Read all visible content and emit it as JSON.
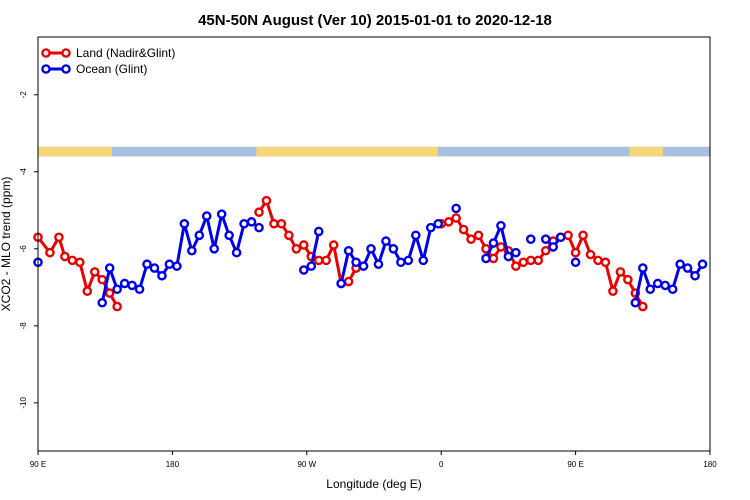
{
  "chart_data": {
    "type": "line",
    "title": "45N-50N August (Ver 10)   2015-01-01 to 2020-12-18",
    "xlabel": "Longitude (deg E)",
    "ylabel": "XCO2 - MLO trend (ppm)",
    "x_tick_labels": [
      "90 E",
      "180",
      "90 W",
      "0",
      "90 E",
      "180"
    ],
    "y_tick_labels": [
      "-2",
      "-4",
      "-6",
      "-8",
      "-10"
    ],
    "y_tick_values": [
      -2,
      -4,
      -6,
      -8,
      -10
    ],
    "xlim": [
      0,
      450
    ],
    "ylim": [
      -11.25,
      -0.5
    ],
    "grid": false,
    "legend_position": "top-left",
    "map_strip": {
      "y_top": -3.35,
      "y_bottom": -3.6,
      "land_color": "#f5d77a",
      "ocean_color": "#a9bfe0"
    },
    "series": [
      {
        "name": "Land (Nadir&Glint)",
        "color": "#e60000",
        "segments": [
          [
            [
              0,
              -5.7
            ],
            [
              8,
              -6.1
            ],
            [
              14,
              -5.7
            ],
            [
              18,
              -6.2
            ],
            [
              23,
              -6.3
            ],
            [
              28,
              -6.35
            ],
            [
              33,
              -7.1
            ],
            [
              38,
              -6.6
            ],
            [
              43,
              -6.8
            ],
            [
              48,
              -7.15
            ],
            [
              53,
              -7.5
            ]
          ],
          [
            [
              148,
              -5.05
            ],
            [
              153,
              -4.75
            ],
            [
              158,
              -5.35
            ],
            [
              163,
              -5.35
            ],
            [
              168,
              -5.65
            ],
            [
              173,
              -6.0
            ],
            [
              178,
              -5.9
            ],
            [
              183,
              -6.2
            ],
            [
              188,
              -6.3
            ],
            [
              193,
              -6.3
            ],
            [
              198,
              -5.9
            ],
            [
              203,
              -6.9
            ],
            [
              208,
              -6.85
            ],
            [
              213,
              -6.5
            ]
          ],
          [
            [
              270,
              -5.35
            ],
            [
              275,
              -5.3
            ],
            [
              280,
              -5.2
            ],
            [
              285,
              -5.5
            ],
            [
              290,
              -5.75
            ],
            [
              295,
              -5.65
            ],
            [
              300,
              -6.0
            ],
            [
              305,
              -6.25
            ],
            [
              310,
              -5.95
            ],
            [
              315,
              -6.05
            ],
            [
              320,
              -6.45
            ],
            [
              325,
              -6.35
            ],
            [
              330,
              -6.3
            ],
            [
              335,
              -6.3
            ],
            [
              340,
              -6.05
            ],
            [
              345,
              -5.8
            ],
            [
              350,
              -5.7
            ],
            [
              355,
              -5.65
            ],
            [
              360,
              -6.1
            ],
            [
              365,
              -5.65
            ],
            [
              370,
              -6.15
            ],
            [
              375,
              -6.3
            ],
            [
              380,
              -6.35
            ],
            [
              385,
              -7.1
            ],
            [
              390,
              -6.6
            ],
            [
              395,
              -6.8
            ],
            [
              400,
              -7.15
            ],
            [
              405,
              -7.5
            ]
          ]
        ]
      },
      {
        "name": "Ocean (Glint)",
        "color": "#0000e6",
        "segments": [
          [
            [
              0,
              -6.35
            ]
          ],
          [
            [
              43,
              -7.4
            ],
            [
              48,
              -6.5
            ],
            [
              53,
              -7.05
            ],
            [
              58,
              -6.9
            ],
            [
              63,
              -6.95
            ],
            [
              68,
              -7.05
            ],
            [
              73,
              -6.4
            ],
            [
              78,
              -6.5
            ],
            [
              83,
              -6.7
            ],
            [
              88,
              -6.4
            ],
            [
              93,
              -6.45
            ],
            [
              98,
              -5.35
            ],
            [
              103,
              -6.05
            ],
            [
              108,
              -5.65
            ],
            [
              113,
              -5.15
            ],
            [
              118,
              -6.0
            ],
            [
              123,
              -5.1
            ],
            [
              128,
              -5.65
            ],
            [
              133,
              -6.1
            ],
            [
              138,
              -5.35
            ],
            [
              143,
              -5.3
            ],
            [
              148,
              -5.45
            ]
          ],
          [
            [
              178,
              -6.55
            ],
            [
              183,
              -6.45
            ],
            [
              188,
              -5.55
            ]
          ],
          [
            [
              203,
              -6.9
            ],
            [
              208,
              -6.05
            ],
            [
              213,
              -6.35
            ],
            [
              218,
              -6.45
            ],
            [
              223,
              -6.0
            ],
            [
              228,
              -6.4
            ],
            [
              233,
              -5.8
            ],
            [
              238,
              -6.0
            ],
            [
              243,
              -6.35
            ],
            [
              248,
              -6.3
            ],
            [
              253,
              -5.65
            ],
            [
              258,
              -6.3
            ],
            [
              263,
              -5.45
            ],
            [
              268,
              -5.35
            ]
          ],
          [
            [
              280,
              -4.95
            ]
          ],
          [
            [
              300,
              -6.25
            ],
            [
              305,
              -5.85
            ],
            [
              310,
              -5.4
            ],
            [
              315,
              -6.2
            ],
            [
              320,
              -6.1
            ]
          ],
          [
            [
              330,
              -5.75
            ]
          ],
          [
            [
              340,
              -5.75
            ],
            [
              345,
              -5.95
            ],
            [
              350,
              -5.7
            ]
          ],
          [
            [
              360,
              -6.35
            ]
          ],
          [
            [
              400,
              -7.4
            ],
            [
              405,
              -6.5
            ],
            [
              410,
              -7.05
            ],
            [
              415,
              -6.9
            ],
            [
              420,
              -6.95
            ],
            [
              425,
              -7.05
            ],
            [
              430,
              -6.4
            ],
            [
              435,
              -6.5
            ],
            [
              440,
              -6.7
            ],
            [
              445,
              -6.4
            ]
          ]
        ]
      }
    ]
  }
}
